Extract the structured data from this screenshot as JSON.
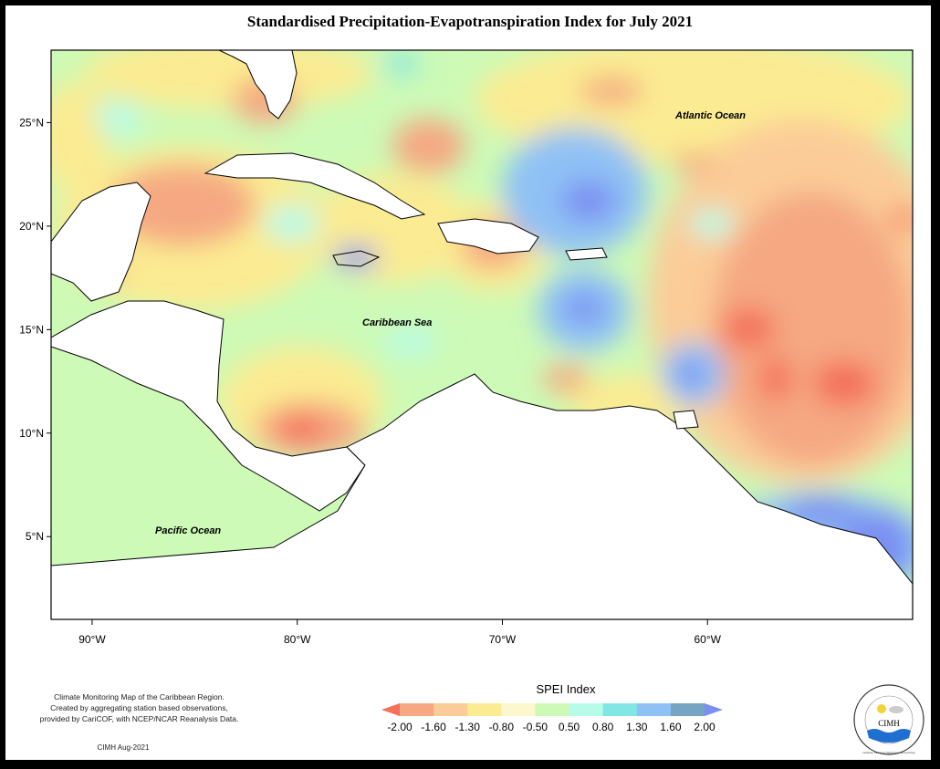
{
  "title": "Standardised Precipitation-Evapotranspiration Index for July 2021",
  "map": {
    "lon_range": [
      -92,
      -50
    ],
    "lat_range": [
      1,
      28.5
    ],
    "x_ticks": [
      {
        "lon": -90,
        "label": "90°W"
      },
      {
        "lon": -80,
        "label": "80°W"
      },
      {
        "lon": -70,
        "label": "70°W"
      },
      {
        "lon": -60,
        "label": "60°W"
      }
    ],
    "y_ticks": [
      {
        "lat": 25,
        "label": "25°N"
      },
      {
        "lat": 20,
        "label": "20°N"
      },
      {
        "lat": 15,
        "label": "15°N"
      },
      {
        "lat": 10,
        "label": "10°N"
      },
      {
        "lat": 5,
        "label": "5°N"
      }
    ],
    "labels": {
      "atlantic": "Atlantic Ocean",
      "caribbean": "Caribbean Sea",
      "pacific": "Pacific Ocean"
    }
  },
  "legend": {
    "title": "SPEI Index",
    "breaks": [
      "-2.00",
      "-1.60",
      "-1.30",
      "-0.80",
      "-0.50",
      "0.50",
      "0.80",
      "1.30",
      "1.60",
      "2.00"
    ],
    "colors": [
      "#f4715a",
      "#f5a882",
      "#fbcc98",
      "#fbeb92",
      "#fcf7cc",
      "#cdfab6",
      "#b7fbe9",
      "#82e6e4",
      "#8fc1f5",
      "#76a4c3",
      "#7b8ff2"
    ]
  },
  "info": {
    "line1": "Climate Monitoring Map of the Caribbean Region.",
    "line2": "Created by aggregating station based observations,",
    "line3": "provided by CariCOF, with NCEP/NCAR Reanalysis Data.",
    "credit": "CIMH Aug-2021"
  },
  "logo": {
    "text": "CIMH",
    "ring_text": "Caribbean Institute for Meteorology and Hydrology"
  }
}
